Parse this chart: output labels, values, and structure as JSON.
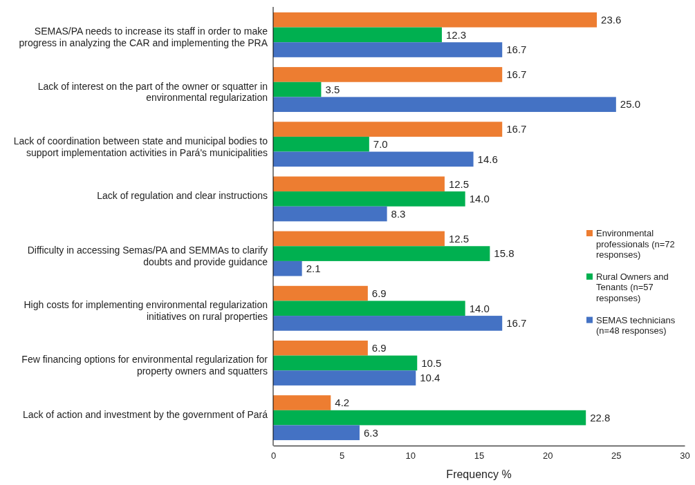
{
  "chart_data": {
    "type": "bar",
    "orientation": "horizontal",
    "xlabel": "Frequency %",
    "categories": [
      "SEMAS/PA needs to increase its staff in order to make progress in analyzing the CAR and implementing the PRA",
      "Lack of interest on the part of the owner or squatter in environmental regularization",
      "Lack of coordination between state and municipal bodies to support implementation activities in Pará's municipalities",
      "Lack of regulation and clear instructions",
      "Difficulty in accessing Semas/PA and SEMMAs to clarify doubts and provide guidance",
      "High costs for implementing environmental regularization initiatives on rural properties",
      "Few financing options for environmental regularization for property owners and squatters",
      "Lack of action and investment by the government of Pará"
    ],
    "series": [
      {
        "name": "Environmental professionals (n=72 responses)",
        "color": "#ed7d31",
        "values": [
          23.6,
          16.7,
          16.7,
          12.5,
          12.5,
          6.9,
          6.9,
          4.2
        ],
        "value_labels": [
          "23.6",
          "16.7",
          "16.7",
          "12.5",
          "12.5",
          "6.9",
          "6.9",
          "4.2"
        ]
      },
      {
        "name": "Rural Owners and Tenants (n=57 responses)",
        "color": "#00b050",
        "values": [
          12.3,
          3.5,
          7.0,
          14.0,
          15.8,
          14.0,
          10.5,
          22.8
        ],
        "value_labels": [
          "12.3",
          "3.5",
          "7.0",
          "14.0",
          "15.8",
          "14.0",
          "10.5",
          "22.8"
        ]
      },
      {
        "name": "SEMAS technicians (n=48 responses)",
        "color": "#4472c4",
        "values": [
          16.7,
          25.0,
          14.6,
          8.3,
          2.1,
          16.7,
          10.4,
          6.3
        ],
        "value_labels": [
          "16.7",
          "25.0",
          "14.6",
          "8.3",
          "2.1",
          "16.7",
          "10.4",
          "6.3"
        ]
      }
    ],
    "xlim": [
      0,
      30
    ],
    "xticks": [
      0,
      5,
      10,
      15,
      20,
      25,
      30
    ],
    "legend": "right",
    "grid": false
  }
}
